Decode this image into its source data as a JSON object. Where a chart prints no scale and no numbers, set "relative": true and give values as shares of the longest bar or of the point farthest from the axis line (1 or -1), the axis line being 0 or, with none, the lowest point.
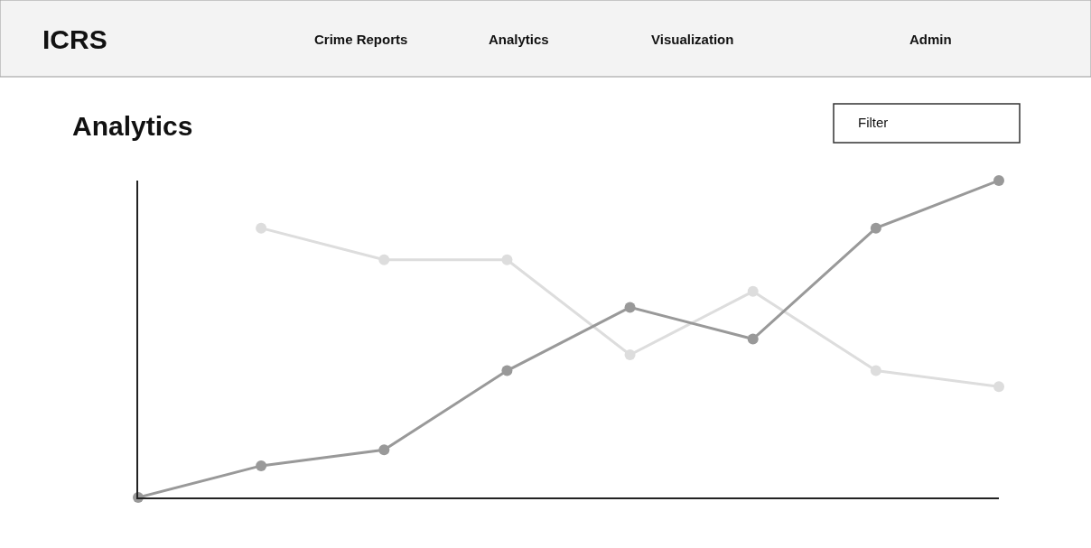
{
  "chart_data": {
    "type": "line",
    "title": "Analytics",
    "relative": true,
    "categories": [
      null,
      null,
      null,
      null,
      null,
      null,
      null,
      null
    ],
    "series": [
      {
        "color": "#dddddd",
        "values": [
          null,
          0.85,
          0.75,
          0.75,
          0.45,
          0.65,
          0.4,
          0.35
        ]
      },
      {
        "color": "#999999",
        "values": [
          0,
          0.1,
          0.15,
          0.4,
          0.6,
          0.5,
          0.85,
          1
        ]
      }
    ],
    "annotations": [
      "ICRS",
      "Crime Reports",
      "Analytics",
      "Visualization",
      "Admin",
      "Filter"
    ],
    "marker": "circle",
    "line_style": "solid"
  }
}
